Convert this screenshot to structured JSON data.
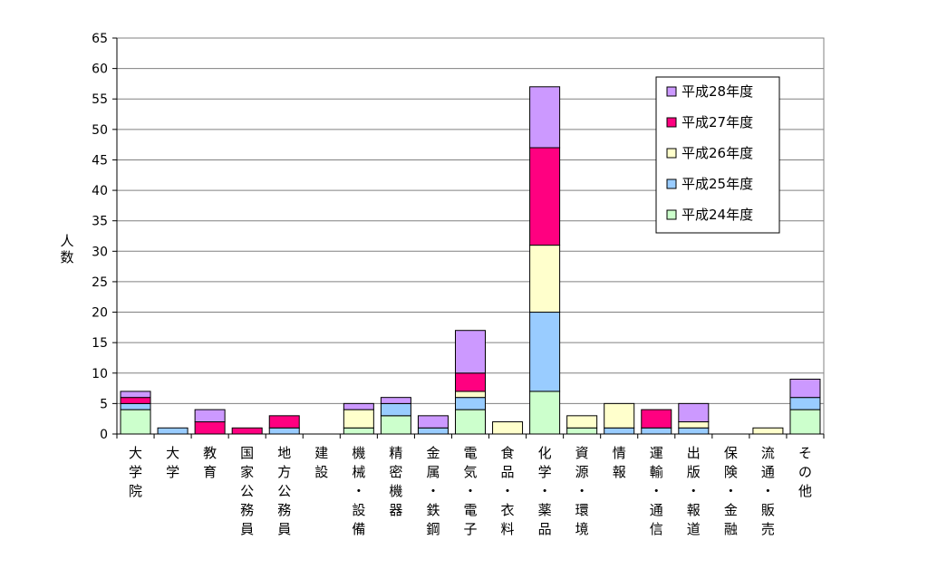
{
  "chart_data": {
    "type": "bar",
    "stacked": true,
    "ylabel": "人数",
    "ylim": [
      0,
      65
    ],
    "yticks": [
      0,
      5,
      10,
      15,
      20,
      25,
      30,
      35,
      40,
      45,
      50,
      55,
      60,
      65
    ],
    "grid": true,
    "legend_position": "top-right",
    "categories": [
      "大学院",
      "大学",
      "教育",
      "国家公務員",
      "地方公務員",
      "建設",
      "機械・設備",
      "精密機器",
      "金属・鉄鋼",
      "電気・電子",
      "食品・衣料",
      "化学・薬品",
      "資源・環境",
      "情報",
      "運輸・通信",
      "出版・報道",
      "保険・金融",
      "流通・販売",
      "その他"
    ],
    "series": [
      {
        "name": "平成24年度",
        "color": "#ccffcc",
        "values": [
          4,
          0,
          0,
          0,
          0,
          0,
          1,
          3,
          0,
          4,
          0,
          7,
          1,
          0,
          0,
          0,
          0,
          0,
          4
        ]
      },
      {
        "name": "平成25年度",
        "color": "#99ccff",
        "values": [
          1,
          1,
          0,
          0,
          1,
          0,
          0,
          2,
          1,
          2,
          0,
          13,
          0,
          1,
          1,
          1,
          0,
          0,
          2
        ]
      },
      {
        "name": "平成26年度",
        "color": "#ffffcc",
        "values": [
          0,
          0,
          0,
          0,
          0,
          0,
          3,
          0,
          0,
          1,
          2,
          11,
          2,
          4,
          0,
          1,
          0,
          1,
          0
        ]
      },
      {
        "name": "平成27年度",
        "color": "#ff0080",
        "values": [
          1,
          0,
          2,
          1,
          2,
          0,
          0,
          0,
          0,
          3,
          0,
          16,
          0,
          0,
          3,
          0,
          0,
          0,
          0
        ]
      },
      {
        "name": "平成28年度",
        "color": "#cc99ff",
        "values": [
          1,
          0,
          2,
          0,
          0,
          0,
          1,
          1,
          2,
          7,
          0,
          10,
          0,
          0,
          0,
          3,
          0,
          0,
          3
        ]
      }
    ]
  }
}
